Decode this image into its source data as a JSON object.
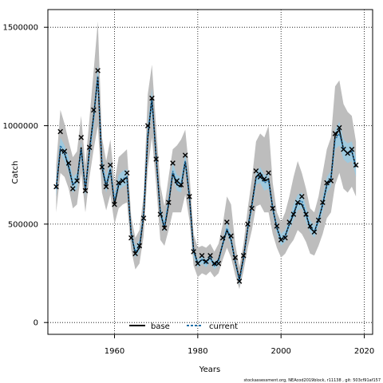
{
  "chart_data": {
    "type": "line",
    "xlabel": "Years",
    "ylabel": "Catch",
    "xlim": [
      1944,
      2022
    ],
    "ylim": [
      -60000,
      1590000
    ],
    "x_ticks": [
      1960,
      1980,
      2000,
      2020
    ],
    "y_ticks": [
      0,
      500000,
      1000000,
      1500000
    ],
    "x_tick_labels": [
      "1960",
      "1980",
      "2000",
      "2020"
    ],
    "y_tick_labels": [
      "0",
      "500000",
      "1000000",
      "1500000"
    ],
    "grid": true,
    "legend_position": "bottom-center",
    "footer": "stockassessment.org, NEAcod2019block, r11138 , git: 503cf91af157",
    "colors": {
      "base_line": "#000000",
      "current_line": "#1f6fa8",
      "base_band": "#bdbdbd",
      "current_band": "#9ec9de",
      "points": "#000000"
    },
    "series": [
      {
        "name": "base",
        "x": [
          1946,
          1947,
          1948,
          1949,
          1950,
          1951,
          1952,
          1953,
          1954,
          1955,
          1956,
          1957,
          1958,
          1959,
          1960,
          1961,
          1962,
          1963,
          1964,
          1965,
          1966,
          1967,
          1968,
          1969,
          1970,
          1971,
          1972,
          1973,
          1974,
          1975,
          1976,
          1977,
          1978,
          1979,
          1980,
          1981,
          1982,
          1983,
          1984,
          1985,
          1986,
          1987,
          1988,
          1989,
          1990,
          1991,
          1992,
          1993,
          1994,
          1995,
          1996,
          1997,
          1998,
          1999,
          2000,
          2001,
          2002,
          2003,
          2004,
          2005,
          2006,
          2007,
          2008,
          2009,
          2010,
          2011,
          2012,
          2013,
          2014,
          2015,
          2016,
          2017,
          2018
        ],
        "values": [
          680000,
          880000,
          860000,
          790000,
          700000,
          720000,
          890000,
          670000,
          880000,
          1050000,
          1250000,
          790000,
          690000,
          780000,
          600000,
          700000,
          720000,
          740000,
          450000,
          350000,
          380000,
          540000,
          940000,
          1140000,
          840000,
          560000,
          480000,
          600000,
          760000,
          700000,
          690000,
          820000,
          640000,
          370000,
          300000,
          320000,
          310000,
          330000,
          290000,
          320000,
          400000,
          470000,
          420000,
          310000,
          220000,
          330000,
          480000,
          600000,
          740000,
          760000,
          720000,
          730000,
          580000,
          480000,
          420000,
          440000,
          500000,
          550000,
          610000,
          600000,
          550000,
          480000,
          460000,
          520000,
          600000,
          700000,
          730000,
          950000,
          980000,
          880000,
          860000,
          870000,
          790000
        ],
        "lower": [
          560000,
          760000,
          740000,
          680000,
          580000,
          600000,
          760000,
          560000,
          740000,
          880000,
          1000000,
          660000,
          570000,
          650000,
          500000,
          580000,
          600000,
          610000,
          370000,
          270000,
          300000,
          440000,
          780000,
          940000,
          700000,
          420000,
          390000,
          470000,
          560000,
          560000,
          560000,
          650000,
          520000,
          290000,
          230000,
          250000,
          240000,
          260000,
          230000,
          250000,
          320000,
          380000,
          330000,
          240000,
          170000,
          260000,
          380000,
          470000,
          590000,
          600000,
          560000,
          560000,
          450000,
          380000,
          330000,
          350000,
          390000,
          420000,
          470000,
          450000,
          410000,
          350000,
          340000,
          390000,
          450000,
          530000,
          560000,
          700000,
          760000,
          680000,
          660000,
          690000,
          640000
        ],
        "upper": [
          800000,
          1080000,
          1010000,
          920000,
          840000,
          870000,
          1050000,
          800000,
          1040000,
          1280000,
          1530000,
          940000,
          820000,
          930000,
          710000,
          840000,
          860000,
          880000,
          540000,
          430000,
          470000,
          650000,
          1160000,
          1310000,
          990000,
          700000,
          590000,
          740000,
          880000,
          900000,
          930000,
          980000,
          760000,
          450000,
          380000,
          390000,
          380000,
          400000,
          360000,
          400000,
          500000,
          640000,
          600000,
          400000,
          280000,
          400000,
          580000,
          730000,
          920000,
          960000,
          940000,
          1000000,
          710000,
          560000,
          510000,
          560000,
          640000,
          740000,
          820000,
          760000,
          680000,
          580000,
          560000,
          640000,
          760000,
          880000,
          940000,
          1200000,
          1230000,
          1110000,
          1070000,
          1050000,
          920000
        ]
      },
      {
        "name": "current",
        "x": [
          1946,
          1947,
          1948,
          1949,
          1950,
          1951,
          1952,
          1953,
          1954,
          1955,
          1956,
          1957,
          1958,
          1959,
          1960,
          1961,
          1962,
          1963,
          1964,
          1965,
          1966,
          1967,
          1968,
          1969,
          1970,
          1971,
          1972,
          1973,
          1974,
          1975,
          1976,
          1977,
          1978,
          1979,
          1980,
          1981,
          1982,
          1983,
          1984,
          1985,
          1986,
          1987,
          1988,
          1989,
          1990,
          1991,
          1992,
          1993,
          1994,
          1995,
          1996,
          1997,
          1998,
          1999,
          2000,
          2001,
          2002,
          2003,
          2004,
          2005,
          2006,
          2007,
          2008,
          2009,
          2010,
          2011,
          2012,
          2013,
          2014,
          2015,
          2016,
          2017,
          2018
        ],
        "values": [
          680000,
          900000,
          860000,
          800000,
          700000,
          720000,
          880000,
          680000,
          870000,
          1040000,
          1250000,
          800000,
          700000,
          780000,
          620000,
          710000,
          730000,
          740000,
          450000,
          360000,
          390000,
          550000,
          960000,
          1130000,
          840000,
          560000,
          490000,
          610000,
          770000,
          710000,
          700000,
          820000,
          640000,
          360000,
          300000,
          320000,
          300000,
          330000,
          290000,
          310000,
          400000,
          480000,
          420000,
          310000,
          210000,
          320000,
          480000,
          590000,
          730000,
          750000,
          710000,
          720000,
          580000,
          480000,
          420000,
          440000,
          500000,
          560000,
          610000,
          620000,
          550000,
          490000,
          460000,
          520000,
          600000,
          700000,
          730000,
          930000,
          960000,
          880000,
          860000,
          870000,
          790000
        ],
        "lower": [
          640000,
          860000,
          820000,
          760000,
          660000,
          680000,
          840000,
          640000,
          830000,
          990000,
          1190000,
          760000,
          660000,
          740000,
          590000,
          670000,
          690000,
          700000,
          420000,
          330000,
          360000,
          520000,
          910000,
          1070000,
          800000,
          530000,
          460000,
          580000,
          730000,
          670000,
          660000,
          780000,
          600000,
          330000,
          280000,
          300000,
          280000,
          310000,
          270000,
          290000,
          380000,
          450000,
          390000,
          290000,
          190000,
          300000,
          450000,
          560000,
          700000,
          710000,
          670000,
          680000,
          550000,
          450000,
          390000,
          410000,
          470000,
          520000,
          570000,
          580000,
          510000,
          460000,
          430000,
          490000,
          560000,
          660000,
          690000,
          880000,
          900000,
          830000,
          810000,
          820000,
          740000
        ],
        "upper": [
          720000,
          940000,
          900000,
          840000,
          740000,
          760000,
          920000,
          720000,
          910000,
          1090000,
          1310000,
          840000,
          740000,
          820000,
          650000,
          750000,
          770000,
          780000,
          480000,
          390000,
          420000,
          580000,
          1010000,
          1190000,
          880000,
          590000,
          520000,
          640000,
          810000,
          750000,
          740000,
          860000,
          680000,
          390000,
          320000,
          340000,
          320000,
          350000,
          310000,
          330000,
          420000,
          510000,
          450000,
          330000,
          230000,
          340000,
          510000,
          620000,
          760000,
          790000,
          750000,
          760000,
          610000,
          510000,
          450000,
          470000,
          530000,
          600000,
          650000,
          660000,
          590000,
          520000,
          490000,
          550000,
          640000,
          740000,
          770000,
          980000,
          1020000,
          930000,
          910000,
          920000,
          840000
        ]
      }
    ],
    "observed": {
      "x": [
        1946,
        1947,
        1948,
        1949,
        1950,
        1951,
        1952,
        1953,
        1954,
        1955,
        1956,
        1957,
        1958,
        1959,
        1960,
        1961,
        1962,
        1963,
        1964,
        1965,
        1966,
        1967,
        1968,
        1969,
        1970,
        1971,
        1972,
        1973,
        1974,
        1975,
        1976,
        1977,
        1978,
        1979,
        1980,
        1981,
        1982,
        1983,
        1984,
        1985,
        1986,
        1987,
        1988,
        1989,
        1990,
        1991,
        1992,
        1993,
        1994,
        1995,
        1996,
        1997,
        1998,
        1999,
        2000,
        2001,
        2002,
        2003,
        2004,
        2005,
        2006,
        2007,
        2008,
        2009,
        2010,
        2011,
        2012,
        2013,
        2014,
        2015,
        2016,
        2017,
        2018
      ],
      "values": [
        690000,
        970000,
        870000,
        810000,
        680000,
        720000,
        940000,
        670000,
        890000,
        1080000,
        1280000,
        790000,
        690000,
        800000,
        600000,
        710000,
        720000,
        760000,
        430000,
        350000,
        390000,
        530000,
        1000000,
        1140000,
        830000,
        550000,
        480000,
        610000,
        810000,
        720000,
        700000,
        850000,
        640000,
        360000,
        300000,
        340000,
        310000,
        340000,
        300000,
        300000,
        430000,
        510000,
        440000,
        330000,
        210000,
        340000,
        500000,
        580000,
        770000,
        740000,
        730000,
        760000,
        580000,
        490000,
        420000,
        430000,
        510000,
        550000,
        610000,
        640000,
        550000,
        490000,
        460000,
        520000,
        610000,
        710000,
        720000,
        960000,
        990000,
        880000,
        860000,
        880000,
        800000
      ]
    }
  }
}
